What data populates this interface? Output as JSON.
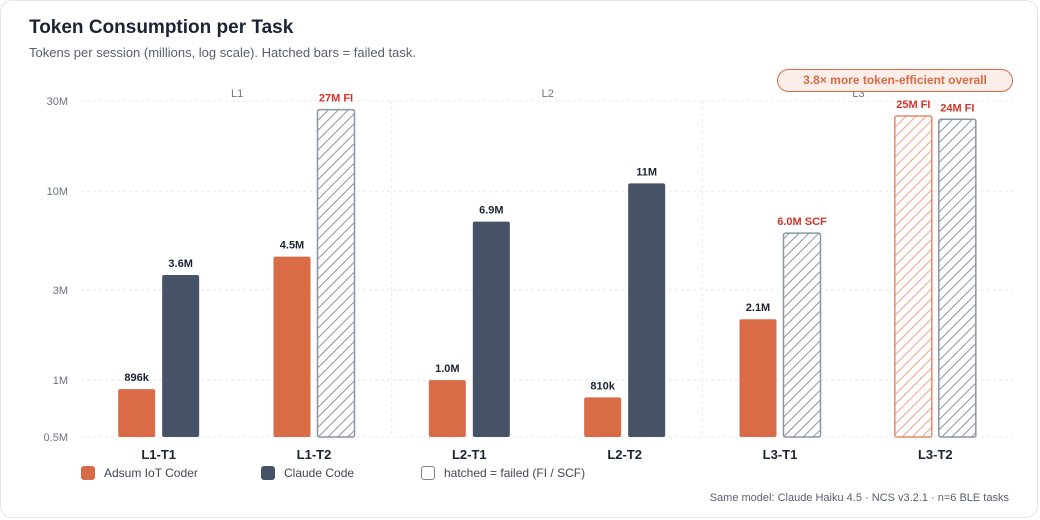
{
  "header": {
    "title": "Token Consumption per Task",
    "subtitle": "Tokens per session (millions, log scale). Hatched bars = failed task.",
    "badge": "3.8× more token-efficient overall"
  },
  "legend": {
    "adsum": "Adsum IoT Coder",
    "claude": "Claude Code",
    "failed": "hatched = failed (FI / SCF)"
  },
  "footnote": "Same model: Claude Haiku 4.5 · NCS v3.2.1 · n=6 BLE tasks",
  "colors": {
    "adsum": "#d96b47",
    "claude": "#465366",
    "failed_label": "#d2342b",
    "grid": "#e6e8eb"
  },
  "chart_data": {
    "type": "bar",
    "title": "Token Consumption per Task",
    "subtitle": "Tokens per session (millions, log scale). Hatched bars = failed task.",
    "yscale": "log",
    "ylim": [
      0.5,
      30
    ],
    "yticks": [
      {
        "value": 0.5,
        "label": "0.5M"
      },
      {
        "value": 1,
        "label": "1M"
      },
      {
        "value": 3,
        "label": "3M"
      },
      {
        "value": 10,
        "label": "10M"
      },
      {
        "value": 30,
        "label": "30M"
      }
    ],
    "groups": [
      {
        "label": "L1",
        "categories": [
          "L1-T1",
          "L1-T2"
        ]
      },
      {
        "label": "L2",
        "categories": [
          "L2-T1",
          "L2-T2"
        ]
      },
      {
        "label": "L3",
        "categories": [
          "L3-T1",
          "L3-T2"
        ]
      }
    ],
    "categories": [
      "L1-T1",
      "L1-T2",
      "L2-T1",
      "L2-T2",
      "L3-T1",
      "L3-T2"
    ],
    "series": [
      {
        "name": "Adsum IoT Coder",
        "values": [
          0.896,
          4.5,
          1.0,
          0.81,
          2.1,
          25
        ],
        "labels": [
          "896k",
          "4.5M",
          "1.0M",
          "810k",
          "2.1M",
          "25M FI"
        ],
        "failed": [
          false,
          false,
          false,
          false,
          false,
          true
        ]
      },
      {
        "name": "Claude Code",
        "values": [
          3.6,
          27,
          6.9,
          11,
          6.0,
          24
        ],
        "labels": [
          "3.6M",
          "27M FI",
          "6.9M",
          "11M",
          "6.0M SCF",
          "24M FI"
        ],
        "failed": [
          false,
          true,
          false,
          false,
          true,
          true
        ]
      }
    ],
    "grid": true,
    "legend_position": "bottom-left"
  }
}
